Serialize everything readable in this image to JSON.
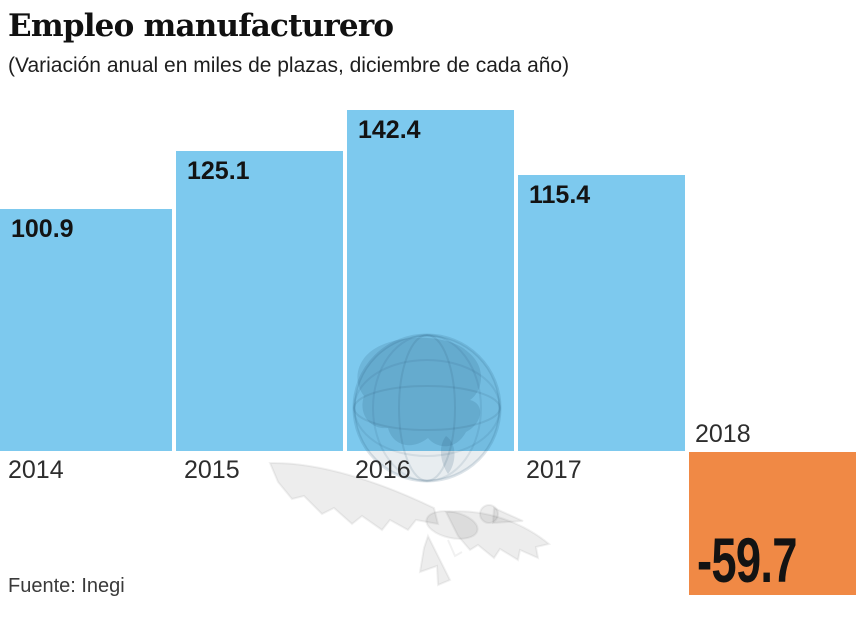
{
  "chart_data": {
    "type": "bar",
    "title": "Empleo manufacturero",
    "subtitle": "(Variación anual en miles de plazas, diciembre de cada año)",
    "categories": [
      "2014",
      "2015",
      "2016",
      "2017",
      "2018"
    ],
    "values": [
      100.9,
      125.1,
      142.4,
      115.4,
      -59.7
    ],
    "value_labels": [
      "100.9",
      "125.1",
      "142.4",
      "115.4",
      "-59.7"
    ],
    "positive_color": "#7dc9ee",
    "negative_color": "#f08945",
    "ylim": [
      -80,
      160
    ],
    "grid": false,
    "legend": false,
    "value_label_position": "inside-top-left for positive bars, inside-bottom-left (large) for negative bar",
    "category_label_position": "below baseline for positive bars, above baseline for negative bar"
  },
  "source": "Fuente: Inegi",
  "watermark": "el-economista-eagle-globe-logo",
  "colors": {
    "background": "#ffffff",
    "positive_bar": "#7dc9ee",
    "negative_bar": "#f08945",
    "title_text": "#111111",
    "value_text": "#131313",
    "year_text": "#2d2d2d",
    "source_text": "#3a3a3a"
  }
}
